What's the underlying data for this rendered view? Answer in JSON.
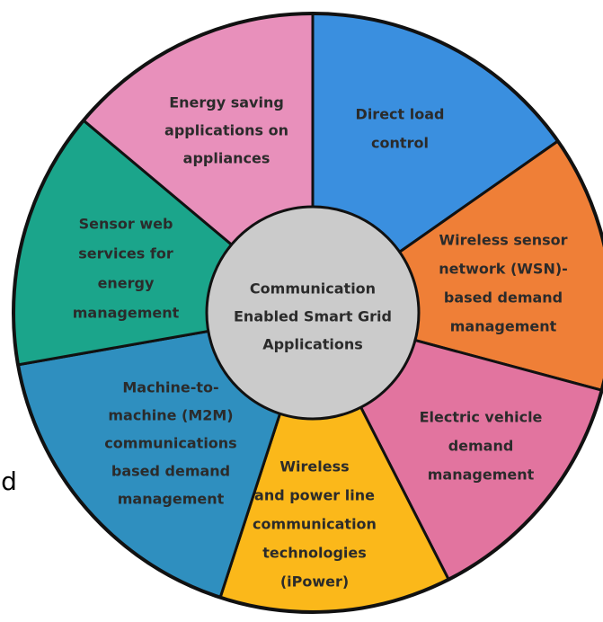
{
  "title": {
    "lines": [
      "Communication",
      "Enabled Smart Grid",
      "Applications"
    ]
  },
  "segments": [
    {
      "lines": [
        "Direct load",
        "control"
      ]
    },
    {
      "lines": [
        "Wireless sensor",
        "network (WSN)-",
        "based demand",
        "management"
      ]
    },
    {
      "lines": [
        "Electric vehicle",
        "demand",
        "management"
      ]
    },
    {
      "lines": [
        "Wireless",
        "and power line",
        "communication",
        "technologies",
        "(iPower)"
      ]
    },
    {
      "lines": [
        "Machine-to-",
        "machine (M2M)",
        "communications",
        "based demand",
        "management"
      ]
    },
    {
      "lines": [
        "Sensor web",
        "services for",
        "energy",
        "management"
      ]
    },
    {
      "lines": [
        "Energy saving",
        "applications on",
        "appliances"
      ]
    }
  ],
  "cropped_text": "d"
}
